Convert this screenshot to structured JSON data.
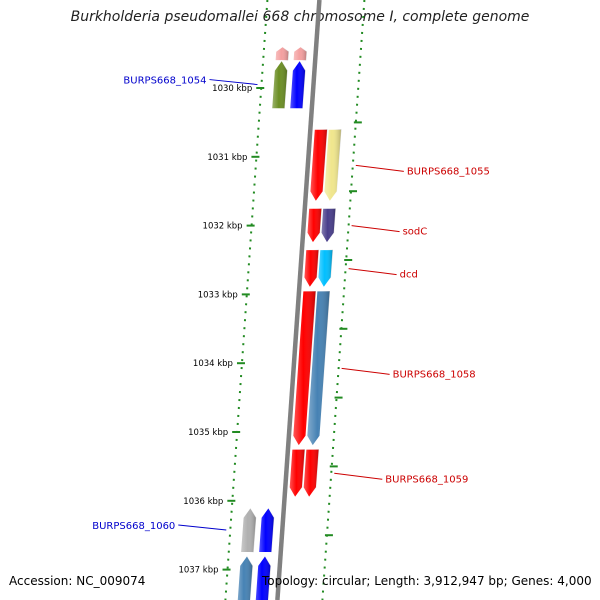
{
  "title": "Burkholderia pseudomallei 668 chromosome I, complete genome",
  "footer": {
    "accession": "Accession: NC_009074",
    "topology": "Topology: circular; Length: 3,912,947 bp; Genes: 4,000"
  },
  "ruler": {
    "ticks": [
      {
        "kbp": 1030,
        "label": "1030 kbp"
      },
      {
        "kbp": 1031,
        "label": "1031 kbp"
      },
      {
        "kbp": 1032,
        "label": "1032 kbp"
      },
      {
        "kbp": 1033,
        "label": "1033 kbp"
      },
      {
        "kbp": 1034,
        "label": "1034 kbp"
      },
      {
        "kbp": 1035,
        "label": "1035 kbp"
      },
      {
        "kbp": 1036,
        "label": "1036 kbp"
      },
      {
        "kbp": 1037,
        "label": "1037 kbp"
      }
    ]
  },
  "genes": [
    {
      "id": "gene-top-a",
      "strand": "reverse",
      "start_kbp": 1029.4,
      "end_kbp": 1029.6,
      "color": "#f4a0a0",
      "cog_color": "#f4a0a0"
    },
    {
      "id": "BURPS668_1054",
      "label": "BURPS668_1054",
      "strand": "reverse",
      "start_kbp": 1029.6,
      "end_kbp": 1030.3,
      "color": "#0000ff",
      "cog_color": "#6b8e23",
      "label_color": "#0000cc"
    },
    {
      "id": "BURPS668_1055",
      "label": "BURPS668_1055",
      "strand": "forward",
      "start_kbp": 1030.6,
      "end_kbp": 1031.65,
      "color": "#ff0000",
      "cog_color": "#f0e68c",
      "label_color": "#cc0000"
    },
    {
      "id": "sodC",
      "label": "sodC",
      "strand": "forward",
      "start_kbp": 1031.75,
      "end_kbp": 1032.25,
      "color": "#ff0000",
      "cog_color": "#483d8b",
      "label_color": "#cc0000"
    },
    {
      "id": "dcd",
      "label": "dcd",
      "strand": "forward",
      "start_kbp": 1032.35,
      "end_kbp": 1032.9,
      "color": "#ff0000",
      "cog_color": "#00bfff",
      "label_color": "#cc0000"
    },
    {
      "id": "BURPS668_1058",
      "label": "BURPS668_1058",
      "strand": "forward",
      "start_kbp": 1032.95,
      "end_kbp": 1035.2,
      "color": "#ff0000",
      "cog_color": "#4682b4",
      "label_color": "#cc0000"
    },
    {
      "id": "BURPS668_1059",
      "label": "BURPS668_1059",
      "strand": "forward",
      "start_kbp": 1035.25,
      "end_kbp": 1035.95,
      "color": "#ff0000",
      "cog_color": "#ff0000",
      "label_color": "#cc0000"
    },
    {
      "id": "BURPS668_1060",
      "label": "BURPS668_1060",
      "strand": "reverse",
      "start_kbp": 1036.1,
      "end_kbp": 1036.75,
      "color": "#0000ff",
      "cog_color": "#b0b0b0",
      "label_color": "#0000cc"
    },
    {
      "id": "gene-bottom-a",
      "strand": "reverse",
      "start_kbp": 1036.8,
      "end_kbp": 1037.6,
      "color": "#0000ff",
      "cog_color": "#4682b4"
    }
  ],
  "colors": {
    "backbone": "#808080",
    "ruler": "#228b22",
    "tick_label": "#000000"
  }
}
